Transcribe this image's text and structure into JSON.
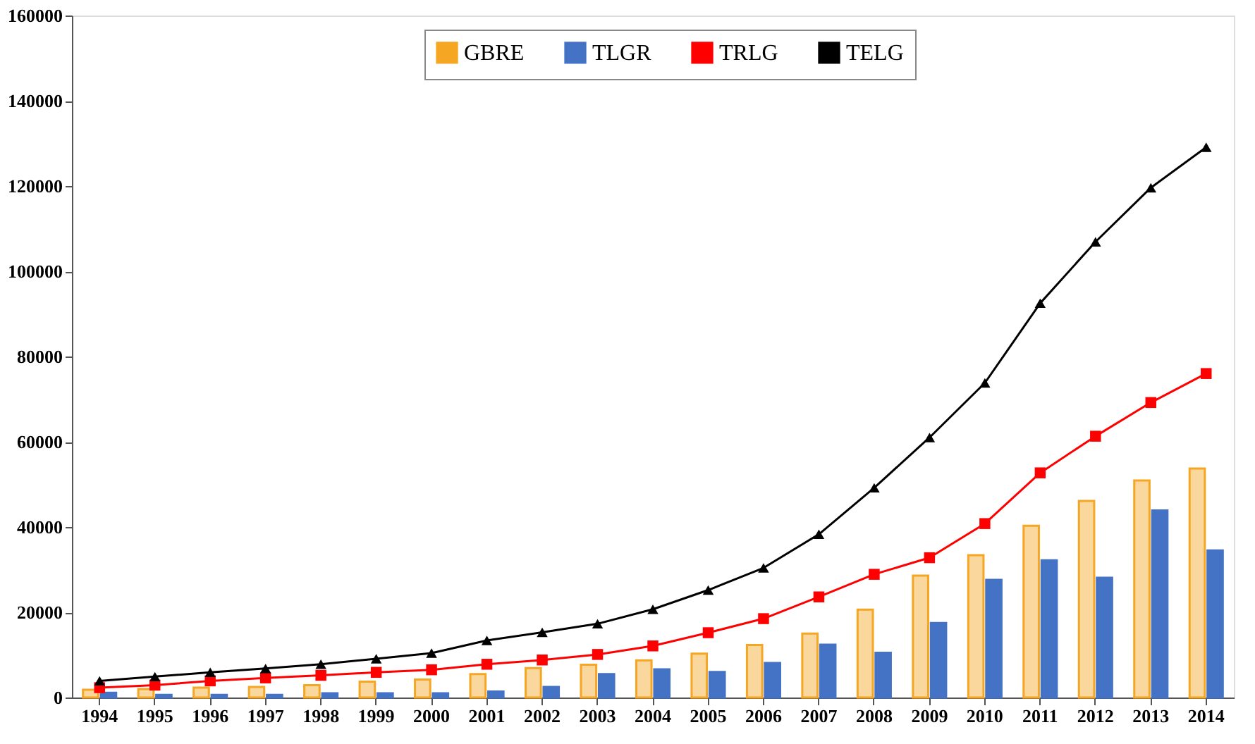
{
  "chart_data": {
    "type": "bar",
    "categories": [
      "1994",
      "1995",
      "1996",
      "1997",
      "1998",
      "1999",
      "2000",
      "2001",
      "2002",
      "2003",
      "2004",
      "2005",
      "2006",
      "2007",
      "2008",
      "2009",
      "2010",
      "2011",
      "2012",
      "2013",
      "2014"
    ],
    "series": [
      {
        "name": "GBRE",
        "color": "#f5a623",
        "values": [
          1800,
          2000,
          2300,
          2500,
          2900,
          3700,
          4200,
          5500,
          6900,
          7700,
          8700,
          10300,
          12300,
          15000,
          20600,
          28600,
          33400,
          40300,
          46100,
          50900,
          53700
        ]
      },
      {
        "name": "TLGR",
        "color": "#4472c4",
        "values": [
          1100,
          600,
          600,
          600,
          1000,
          1000,
          1000,
          1400,
          2500,
          5500,
          6600,
          6000,
          8100,
          12400,
          10500,
          17500,
          27600,
          32200,
          28100,
          43900,
          34500
        ]
      },
      {
        "name": "TRLG",
        "type": "line",
        "color": "#ff0000",
        "marker": "square",
        "values": [
          2300,
          2900,
          3900,
          4600,
          5200,
          5900,
          6500,
          7800,
          8800,
          10100,
          12100,
          15200,
          18500,
          23600,
          28900,
          32800,
          40800,
          52700,
          61300,
          69200,
          76000
        ]
      },
      {
        "name": "TELG",
        "type": "line",
        "color": "#000000",
        "marker": "triangle",
        "values": [
          3900,
          4900,
          5900,
          6800,
          7800,
          9100,
          10400,
          13400,
          15300,
          17300,
          20700,
          25200,
          30400,
          38300,
          49200,
          61000,
          73800,
          92500,
          106900,
          119600,
          129100
        ]
      }
    ],
    "ylim": [
      0,
      160000
    ],
    "yticks": [
      0,
      20000,
      40000,
      60000,
      80000,
      100000,
      120000,
      140000,
      160000
    ],
    "grid": false,
    "legend": "top"
  }
}
